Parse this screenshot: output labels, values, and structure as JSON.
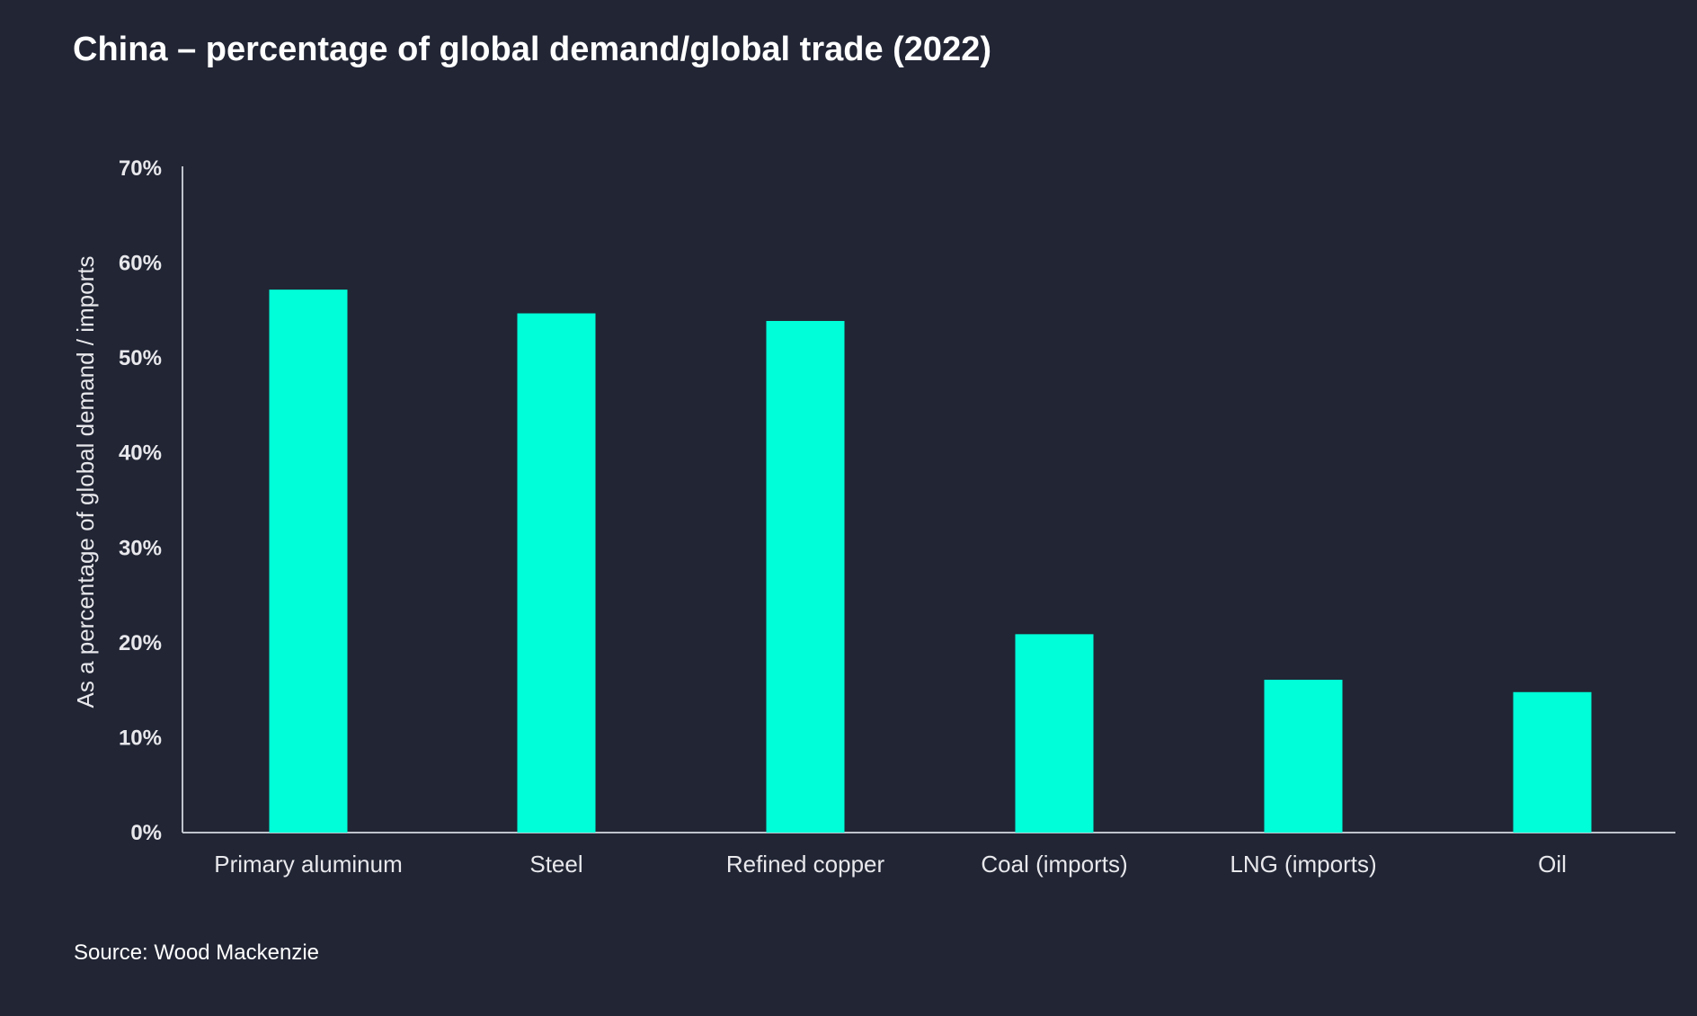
{
  "chart_data": {
    "type": "bar",
    "title": "China – percentage of global demand/global trade (2022)",
    "xlabel": "",
    "ylabel": "As a percentage of global demand / imports",
    "categories": [
      "Primary aluminum",
      "Steel",
      "Refined copper",
      "Coal (imports)",
      "LNG (imports)",
      "Oil"
    ],
    "values": [
      57.2,
      54.7,
      53.9,
      20.9,
      16.1,
      14.8
    ],
    "ylim": [
      0,
      70
    ],
    "yticks": [
      0,
      10,
      20,
      30,
      40,
      50,
      60,
      70
    ],
    "ytick_labels": [
      "0%",
      "10%",
      "20%",
      "30%",
      "40%",
      "50%",
      "60%",
      "70%"
    ],
    "grid": false,
    "colors": {
      "bar": "#00FFD8",
      "background": "#212534",
      "axis": "#BFC3CC"
    }
  },
  "source": "Source: Wood Mackenzie"
}
